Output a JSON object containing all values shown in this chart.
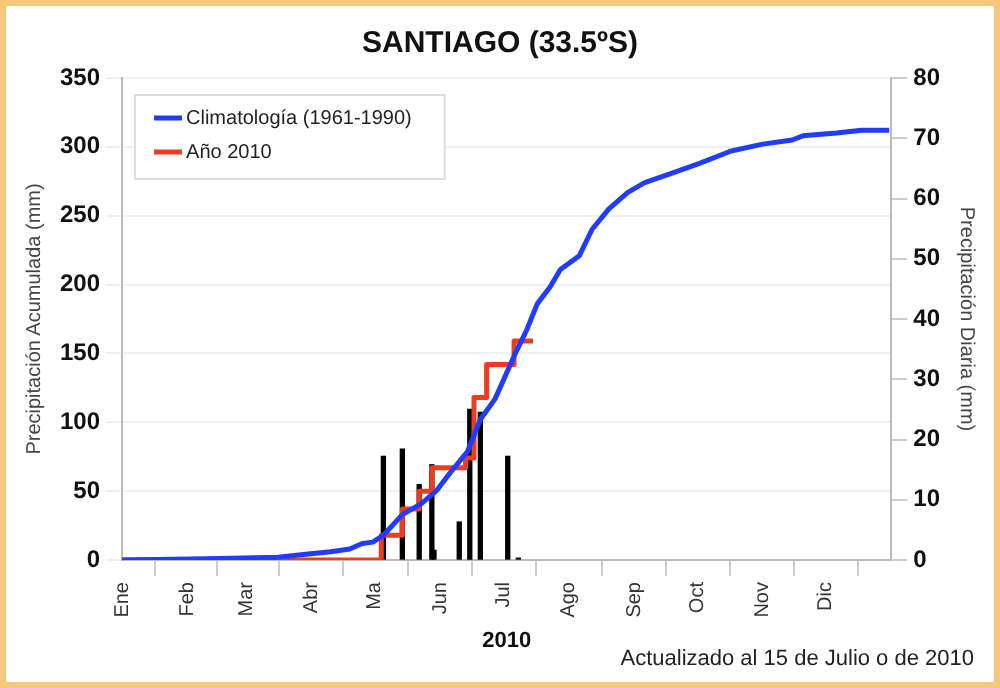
{
  "chart_data": {
    "type": "line",
    "title": "SANTIAGO (33.5ºS)",
    "xlabel": "2010",
    "ylabel": "Precipitación Acumulada (mm)",
    "y2label": "Precipitación Diaria (mm)",
    "annotations": [
      "Actualizado al 15 de Julio o de 2010"
    ],
    "xlim": [
      "2010-01-01",
      "2011-01-01"
    ],
    "xticks": [
      {
        "value": "2010-01-01",
        "label": "Ene"
      },
      {
        "value": "2010-02-01",
        "label": "Feb"
      },
      {
        "value": "2010-03-01",
        "label": "Mar"
      },
      {
        "value": "2010-04-01",
        "label": "Abr"
      },
      {
        "value": "2010-05-01",
        "label": "Ma"
      },
      {
        "value": "2010-06-01",
        "label": "Jun"
      },
      {
        "value": "2010-07-01",
        "label": "Jul"
      },
      {
        "value": "2010-08-01",
        "label": "Ago"
      },
      {
        "value": "2010-09-01",
        "label": "Sep"
      },
      {
        "value": "2010-10-01",
        "label": "Oct"
      },
      {
        "value": "2010-11-01",
        "label": "Nov"
      },
      {
        "value": "2010-12-01",
        "label": "Dic"
      }
    ],
    "ylim": [
      0,
      350
    ],
    "yticks": [
      0,
      50,
      100,
      150,
      200,
      250,
      300,
      350
    ],
    "y2lim": [
      0,
      80
    ],
    "y2ticks": [
      0,
      10,
      20,
      30,
      40,
      50,
      60,
      70,
      80
    ],
    "grid": "y",
    "legend": "top left",
    "marker": "none",
    "line_style": "solid",
    "series": [
      {
        "name": "Climatología (1961-1990)",
        "color": "#1f3cff",
        "x": [
          "2010-01-01",
          "2010-02-10",
          "2010-03-16",
          "2010-03-28",
          "2010-04-10",
          "2010-04-19",
          "2010-04-25",
          "2010-04-30",
          "2010-05-05",
          "2010-05-14",
          "2010-05-23",
          "2010-05-30",
          "2010-06-05",
          "2010-06-14",
          "2010-06-20",
          "2010-06-27",
          "2010-07-06",
          "2010-07-12",
          "2010-07-17",
          "2010-07-23",
          "2010-07-28",
          "2010-08-06",
          "2010-08-12",
          "2010-08-20",
          "2010-08-29",
          "2010-09-06",
          "2010-09-19",
          "2010-10-02",
          "2010-10-17",
          "2010-11-01",
          "2010-11-15",
          "2010-11-20",
          "2010-12-06",
          "2010-12-18",
          "2010-12-31"
        ],
        "values": [
          0,
          1,
          2,
          4,
          6,
          8,
          12,
          13,
          18,
          33,
          41,
          50,
          62,
          79,
          102,
          117,
          148,
          167,
          186,
          198,
          211,
          221,
          240,
          255,
          267,
          274,
          281,
          288,
          297,
          302,
          305,
          308,
          310,
          312,
          312
        ]
      },
      {
        "name": "Año 2010",
        "type": "step",
        "color": "#f03c1e",
        "x": [
          "2010-01-01",
          "2010-05-04",
          "2010-05-14",
          "2010-05-22",
          "2010-05-28",
          "2010-06-13",
          "2010-06-17",
          "2010-06-23",
          "2010-07-06",
          "2010-07-15"
        ],
        "values": [
          0,
          18,
          37,
          50,
          67,
          74,
          118,
          142,
          159,
          159
        ]
      },
      {
        "type": "bar",
        "axis": "y2",
        "color": "#000000",
        "x": [
          "2010-05-05",
          "2010-05-14",
          "2010-05-22",
          "2010-05-28",
          "2010-05-29",
          "2010-06-10",
          "2010-06-15",
          "2010-06-20",
          "2010-07-03",
          "2010-07-08"
        ],
        "values": [
          17.2,
          18.4,
          12.5,
          15.8,
          1.6,
          6.3,
          25,
          24.5,
          17.2,
          0.3
        ]
      }
    ]
  }
}
